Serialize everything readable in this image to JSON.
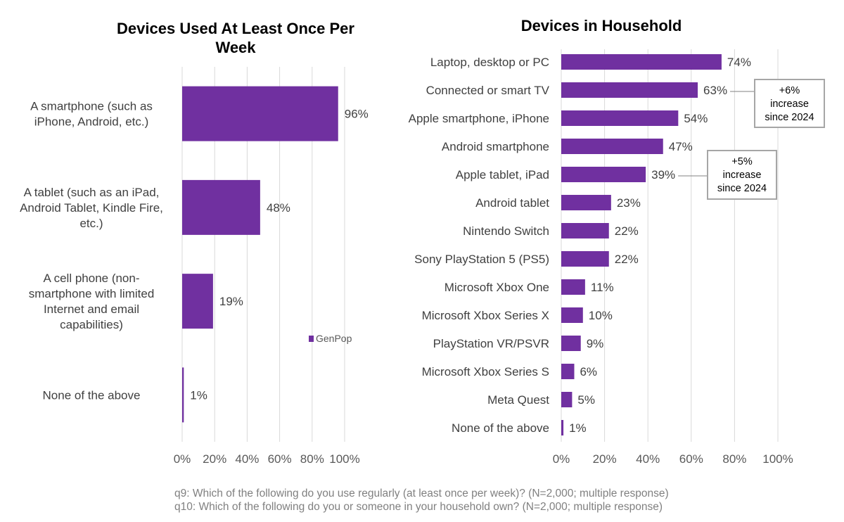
{
  "colors": {
    "bar": "#7030a0",
    "grid": "#d9d9d9",
    "callout_border": "#a6a6a6"
  },
  "chart_data": [
    {
      "type": "bar",
      "orientation": "horizontal",
      "title": "Devices Used At Least Once Per Week",
      "title_lines": [
        "Devices Used At Least Once Per",
        "Week"
      ],
      "categories": [
        [
          "A smartphone (such as",
          "iPhone, Android, etc.)"
        ],
        [
          "A tablet (such as an iPad,",
          "Android Tablet, Kindle Fire,",
          "etc.)"
        ],
        [
          "A cell phone (non-",
          "smartphone with limited",
          "Internet and email",
          "capabilities)"
        ],
        [
          "None of the above"
        ]
      ],
      "series": [
        {
          "name": "GenPop",
          "values": [
            96,
            48,
            19,
            1
          ]
        }
      ],
      "value_labels": [
        "96%",
        "48%",
        "19%",
        "1%"
      ],
      "xlim": [
        0,
        100
      ],
      "ticks": [
        "0%",
        "20%",
        "40%",
        "60%",
        "80%",
        "100%"
      ],
      "grid": true,
      "legend": {
        "entries": [
          "GenPop"
        ],
        "placement": "lower-right"
      }
    },
    {
      "type": "bar",
      "orientation": "horizontal",
      "title": "Devices in Household",
      "categories": [
        "Laptop, desktop or PC",
        "Connected or smart TV",
        "Apple smartphone, iPhone",
        "Android smartphone",
        "Apple tablet, iPad",
        "Android tablet",
        "Nintendo Switch",
        "Sony PlayStation 5 (PS5)",
        "Microsoft Xbox One",
        "Microsoft Xbox Series X",
        "PlayStation VR/PSVR",
        "Microsoft Xbox Series S",
        "Meta Quest",
        "None of the above"
      ],
      "values": [
        74,
        63,
        54,
        47,
        39,
        23,
        22,
        22,
        11,
        10,
        9,
        6,
        5,
        1
      ],
      "value_labels": [
        "74%",
        "63%",
        "54%",
        "47%",
        "39%",
        "23%",
        "22%",
        "22%",
        "11%",
        "10%",
        "9%",
        "6%",
        "5%",
        "1%"
      ],
      "xlim": [
        0,
        100
      ],
      "ticks": [
        "0%",
        "20%",
        "40%",
        "60%",
        "80%",
        "100%"
      ],
      "grid": true,
      "annotations": [
        {
          "category": "Connected or smart TV",
          "lines": [
            "+6%",
            "increase",
            "since 2024"
          ]
        },
        {
          "category": "Apple tablet, iPad",
          "lines": [
            "+5%",
            "increase",
            "since 2024"
          ]
        }
      ]
    }
  ],
  "footnotes": [
    "q9: Which of the following do you use regularly (at least once per week)? (N=2,000; multiple response)",
    "q10: Which of the following do you or someone in your household own? (N=2,000; multiple response)"
  ]
}
